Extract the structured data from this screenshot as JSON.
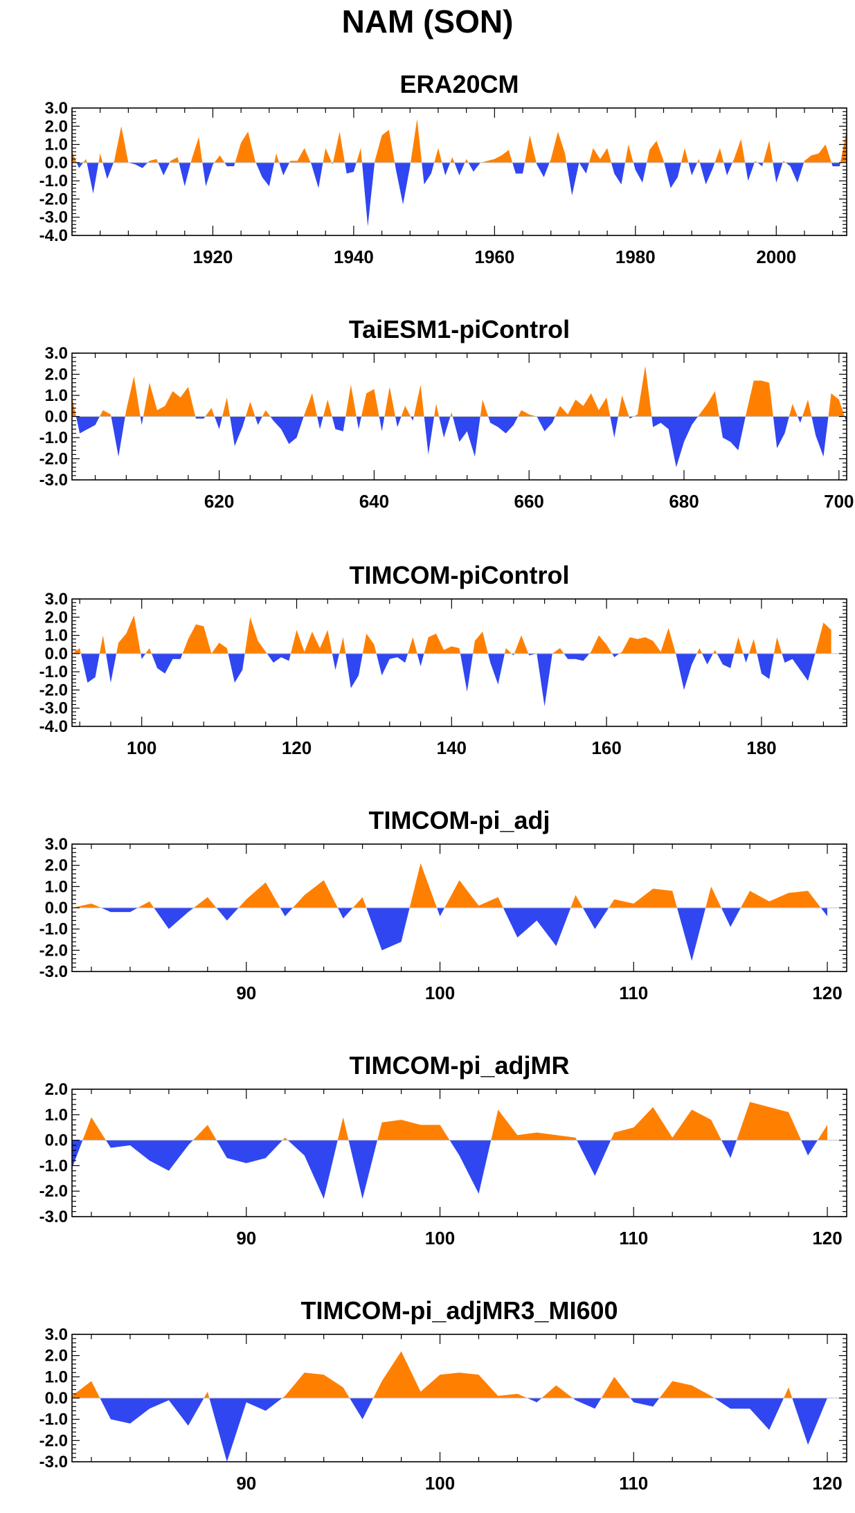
{
  "title": "NAM (SON)",
  "colors": {
    "positive": "#ff8000",
    "negative": "#3046f0",
    "axis": "#000000"
  },
  "chart_data": [
    {
      "type": "area",
      "title": "ERA20CM",
      "xlabel": "",
      "ylabel": "",
      "xlim": [
        1900,
        2010
      ],
      "ylim": [
        -4.0,
        3.0
      ],
      "yticks": [
        "3.0",
        "2.0",
        "1.0",
        "0.0",
        "-1.0",
        "-2.0",
        "-3.0",
        "-4.0"
      ],
      "yticks_values": [
        3,
        2,
        1,
        0,
        -1,
        -2,
        -3,
        -4
      ],
      "xticks": [
        1920,
        1940,
        1960,
        1980,
        2000
      ],
      "grid": false,
      "series": [
        {
          "x_start": 1900,
          "values": [
            0.6,
            -0.3,
            0.2,
            -1.7,
            0.5,
            -0.9,
            0.1,
            2.0,
            0.0,
            -0.1,
            -0.3,
            0.1,
            0.2,
            -0.7,
            0.1,
            0.3,
            -1.3,
            0.2,
            1.4,
            -1.3,
            -0.1,
            0.4,
            -0.2,
            -0.2,
            1.1,
            1.7,
            0.1,
            -0.8,
            -1.3,
            0.5,
            -0.7,
            0.1,
            0.1,
            0.8,
            -0.1,
            -1.4,
            0.8,
            -0.1,
            1.7,
            -0.6,
            -0.5,
            0.8,
            -3.5,
            0.1,
            1.5,
            1.8,
            -0.4,
            -2.3,
            -0.2,
            2.4,
            -1.2,
            -0.6,
            0.8,
            -0.7,
            0.3,
            -0.7,
            0.2,
            -0.5,
            0.0,
            0.1,
            0.2,
            0.4,
            0.7,
            -0.6,
            -0.6,
            1.5,
            -0.1,
            -0.8,
            0.2,
            1.7,
            0.5,
            -1.8,
            0.0,
            -0.6,
            0.8,
            0.2,
            0.8,
            -0.6,
            -1.2,
            1.0,
            -0.4,
            -1.1,
            0.7,
            1.2,
            0.1,
            -1.4,
            -0.8,
            0.8,
            -0.7,
            0.2,
            -1.2,
            -0.3,
            0.8,
            -0.7,
            0.2,
            1.3,
            -1.0,
            0.1,
            -0.2,
            1.2,
            -1.1,
            0.1,
            -0.2,
            -1.1,
            0.1,
            0.4,
            0.5,
            1.0,
            -0.2,
            -0.2,
            1.8
          ]
        }
      ]
    },
    {
      "type": "area",
      "title": "TaiESM1-piControl",
      "xlabel": "",
      "ylabel": "",
      "xlim": [
        601,
        701
      ],
      "ylim": [
        -3.0,
        3.0
      ],
      "yticks": [
        "3.0",
        "2.0",
        "1.0",
        "0.0",
        "-1.0",
        "-2.0",
        "-3.0"
      ],
      "yticks_values": [
        3,
        2,
        1,
        0,
        -1,
        -2,
        -3
      ],
      "xticks": [
        620,
        640,
        660,
        680,
        700
      ],
      "grid": false,
      "series": [
        {
          "x_start": 601,
          "values": [
            0.9,
            -0.8,
            -0.6,
            -0.4,
            0.3,
            0.1,
            -1.9,
            0.3,
            1.9,
            -0.4,
            1.6,
            0.3,
            0.5,
            1.2,
            0.9,
            1.4,
            -0.1,
            -0.1,
            0.4,
            -0.6,
            0.9,
            -1.4,
            -0.5,
            0.7,
            -0.4,
            0.3,
            -0.2,
            -0.6,
            -1.3,
            -1.0,
            0.1,
            1.1,
            -0.6,
            0.8,
            -0.6,
            -0.7,
            1.5,
            -0.6,
            1.1,
            1.3,
            -0.7,
            1.4,
            -0.5,
            0.5,
            -0.2,
            1.5,
            -1.8,
            0.6,
            -1.0,
            0.2,
            -1.2,
            -0.7,
            -1.9,
            0.8,
            -0.3,
            -0.5,
            -0.8,
            -0.4,
            0.3,
            0.1,
            0.0,
            -0.7,
            -0.3,
            0.5,
            0.1,
            0.8,
            0.5,
            1.1,
            0.3,
            0.9,
            -1.0,
            1.0,
            -0.1,
            0.1,
            2.4,
            -0.5,
            -0.3,
            -0.6,
            -2.4,
            -1.2,
            -0.4,
            0.1,
            0.6,
            1.2,
            -1.0,
            -1.2,
            -1.6,
            0.1,
            1.7,
            1.7,
            1.6,
            -1.5,
            -0.8,
            0.6,
            -0.3,
            0.8,
            -0.9,
            -1.9,
            1.1,
            0.8,
            -0.3
          ]
        }
      ]
    },
    {
      "type": "area",
      "title": "TIMCOM-piControl",
      "xlabel": "",
      "ylabel": "",
      "xlim": [
        91,
        191
      ],
      "ylim": [
        -4.0,
        3.0
      ],
      "yticks": [
        "3.0",
        "2.0",
        "1.0",
        "0.0",
        "-1.0",
        "-2.0",
        "-3.0",
        "-4.0"
      ],
      "yticks_values": [
        3,
        2,
        1,
        0,
        -1,
        -2,
        -3,
        -4
      ],
      "xticks": [
        100,
        120,
        140,
        160,
        180
      ],
      "grid": false,
      "series": [
        {
          "x_start": 91,
          "values": [
            0.0,
            0.3,
            -1.6,
            -1.3,
            1.0,
            -1.6,
            0.6,
            1.1,
            2.1,
            -0.3,
            0.3,
            -0.8,
            -1.1,
            -0.3,
            -0.3,
            0.8,
            1.6,
            1.5,
            0.0,
            0.6,
            0.3,
            -1.6,
            -0.9,
            2.0,
            0.7,
            0.1,
            -0.5,
            -0.2,
            -0.4,
            1.3,
            0.1,
            1.2,
            0.3,
            1.3,
            -0.9,
            0.9,
            -1.9,
            -1.2,
            1.1,
            0.5,
            -1.2,
            -0.3,
            -0.2,
            -0.5,
            0.9,
            -0.7,
            0.9,
            1.1,
            0.2,
            0.4,
            0.3,
            -2.1,
            0.7,
            1.2,
            -0.5,
            -1.7,
            0.3,
            -0.1,
            1.0,
            -0.1,
            0.0,
            -2.9,
            0.0,
            0.3,
            -0.3,
            -0.3,
            -0.4,
            0.1,
            1.0,
            0.5,
            -0.2,
            0.1,
            0.9,
            0.8,
            0.9,
            0.7,
            0.1,
            1.4,
            -0.1,
            -2.0,
            -0.6,
            0.3,
            -0.6,
            0.2,
            -0.6,
            -0.8,
            0.9,
            -0.5,
            0.8,
            -1.1,
            -1.4,
            0.9,
            -0.5,
            -0.3,
            -0.9,
            -1.5,
            0.1,
            1.7,
            1.3
          ]
        }
      ]
    },
    {
      "type": "area",
      "title": "TIMCOM-pi_adj",
      "xlabel": "",
      "ylabel": "",
      "xlim": [
        81,
        121
      ],
      "ylim": [
        -3.0,
        3.0
      ],
      "yticks": [
        "3.0",
        "2.0",
        "1.0",
        "0.0",
        "-1.0",
        "-2.0",
        "-3.0"
      ],
      "yticks_values": [
        3,
        2,
        1,
        0,
        -1,
        -2,
        -3
      ],
      "xticks": [
        90,
        100,
        110,
        120
      ],
      "grid": false,
      "series": [
        {
          "x_start": 81,
          "values": [
            0.0,
            0.2,
            -0.2,
            -0.2,
            0.3,
            -1.0,
            -0.2,
            0.5,
            -0.6,
            0.4,
            1.2,
            -0.4,
            0.6,
            1.3,
            -0.5,
            0.5,
            -2.0,
            -1.6,
            2.1,
            -0.4,
            1.3,
            0.1,
            0.5,
            -1.4,
            -0.6,
            -1.8,
            0.6,
            -1.0,
            0.4,
            0.2,
            0.9,
            0.8,
            -2.5,
            1.0,
            -0.9,
            0.8,
            0.3,
            0.7,
            0.8,
            -0.4
          ]
        }
      ]
    },
    {
      "type": "area",
      "title": "TIMCOM-pi_adjMR",
      "xlabel": "",
      "ylabel": "",
      "xlim": [
        81,
        121
      ],
      "ylim": [
        -3.0,
        2.0
      ],
      "yticks": [
        "2.0",
        "1.0",
        "0.0",
        "-1.0",
        "-2.0",
        "-3.0"
      ],
      "yticks_values": [
        2,
        1,
        0,
        -1,
        -2,
        -3
      ],
      "xticks": [
        90,
        100,
        110,
        120
      ],
      "grid": false,
      "series": [
        {
          "x_start": 81,
          "values": [
            -1.1,
            0.9,
            -0.3,
            -0.2,
            -0.8,
            -1.2,
            -0.2,
            0.6,
            -0.7,
            -0.9,
            -0.7,
            0.1,
            -0.6,
            -2.3,
            0.9,
            -2.3,
            0.7,
            0.8,
            0.6,
            0.6,
            -0.6,
            -2.1,
            1.2,
            0.2,
            0.3,
            0.2,
            0.1,
            -1.4,
            0.3,
            0.5,
            1.3,
            0.1,
            1.2,
            0.8,
            -0.7,
            1.5,
            1.3,
            1.1,
            -0.6,
            0.6
          ]
        }
      ]
    },
    {
      "type": "area",
      "title": "TIMCOM-pi_adjMR3_MI600",
      "xlabel": "",
      "ylabel": "",
      "xlim": [
        81,
        121
      ],
      "ylim": [
        -3.0,
        3.0
      ],
      "yticks": [
        "3.0",
        "2.0",
        "1.0",
        "0.0",
        "-1.0",
        "-2.0",
        "-3.0"
      ],
      "yticks_values": [
        3,
        2,
        1,
        0,
        -1,
        -2,
        -3
      ],
      "xticks": [
        90,
        100,
        110,
        120
      ],
      "grid": false,
      "series": [
        {
          "x_start": 81,
          "values": [
            0.1,
            0.8,
            -1.0,
            -1.2,
            -0.5,
            -0.1,
            -1.3,
            0.3,
            -3.0,
            -0.2,
            -0.6,
            0.1,
            1.2,
            1.1,
            0.5,
            -1.0,
            0.8,
            2.2,
            0.3,
            1.1,
            1.2,
            1.1,
            0.1,
            0.2,
            -0.2,
            0.6,
            -0.1,
            -0.5,
            1.0,
            -0.2,
            -0.4,
            0.8,
            0.6,
            0.1,
            -0.5,
            -0.5,
            -1.5,
            0.5,
            -2.2,
            0.0
          ]
        }
      ]
    }
  ]
}
